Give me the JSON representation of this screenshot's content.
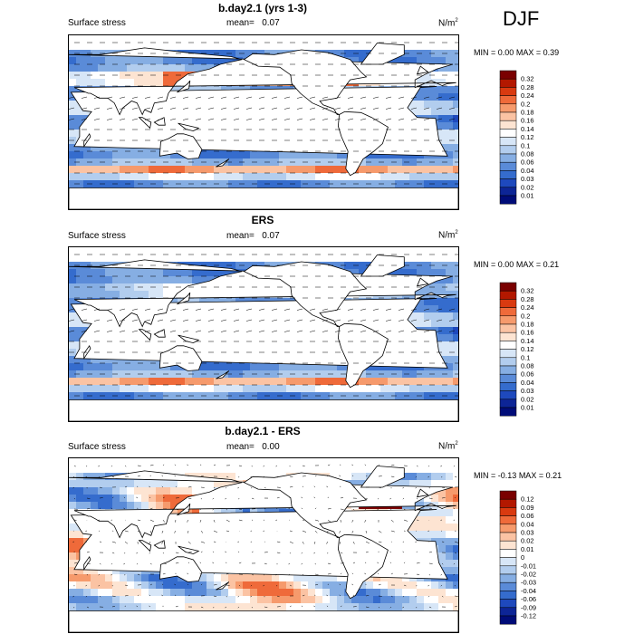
{
  "season": "DJF",
  "panels": [
    {
      "title": "b.day2.1 (yrs 1-3)",
      "left_label": "Surface stress",
      "mean_label": "mean=",
      "mean_value": "0.07",
      "units": "N/m",
      "units_sup": "2",
      "min_label": "MIN =",
      "min_value": "0.00",
      "max_label": "MAX =",
      "max_value": "0.39",
      "colorbar": [
        "0.32",
        "0.28",
        "0.24",
        "0.2",
        "0.18",
        "0.16",
        "0.14",
        "0.12",
        "0.1",
        "0.08",
        "0.06",
        "0.04",
        "0.03",
        "0.02",
        "0.01"
      ],
      "colors": [
        "#7a0000",
        "#b31800",
        "#d93a10",
        "#ef6a3a",
        "#f69a6c",
        "#fbc3a3",
        "#fde4d2",
        "#ffffff",
        "#d7e6f7",
        "#b2cdee",
        "#86aee3",
        "#5a8bd8",
        "#356ccd",
        "#1e49bd",
        "#0d2596",
        "#000c78"
      ]
    },
    {
      "title": "ERS",
      "left_label": "Surface stress",
      "mean_label": "mean=",
      "mean_value": "0.07",
      "units": "N/m",
      "units_sup": "2",
      "min_label": "MIN =",
      "min_value": "0.00",
      "max_label": "MAX =",
      "max_value": "0.21",
      "colorbar": [
        "0.32",
        "0.28",
        "0.24",
        "0.2",
        "0.18",
        "0.16",
        "0.14",
        "0.12",
        "0.1",
        "0.08",
        "0.06",
        "0.04",
        "0.03",
        "0.02",
        "0.01"
      ],
      "colors": [
        "#7a0000",
        "#b31800",
        "#d93a10",
        "#ef6a3a",
        "#f69a6c",
        "#fbc3a3",
        "#fde4d2",
        "#ffffff",
        "#d7e6f7",
        "#b2cdee",
        "#86aee3",
        "#5a8bd8",
        "#356ccd",
        "#1e49bd",
        "#0d2596",
        "#000c78"
      ]
    },
    {
      "title": "b.day2.1 - ERS",
      "left_label": "Surface stress",
      "mean_label": "mean=",
      "mean_value": "0.00",
      "units": "N/m",
      "units_sup": "2",
      "min_label": "MIN =",
      "min_value": "-0.13",
      "max_label": "MAX =",
      "max_value": "0.21",
      "colorbar": [
        "0.12",
        "0.09",
        "0.06",
        "0.04",
        "0.03",
        "0.02",
        "0.01",
        "0",
        "-0.01",
        "-0.02",
        "-0.03",
        "-0.04",
        "-0.06",
        "-0.09",
        "-0.12"
      ],
      "colors": [
        "#7a0000",
        "#b31800",
        "#d93a10",
        "#ef6a3a",
        "#f69a6c",
        "#fbc3a3",
        "#fde4d2",
        "#ffffff",
        "#d7e6f7",
        "#b2cdee",
        "#86aee3",
        "#5a8bd8",
        "#356ccd",
        "#1e49bd",
        "#0d2596",
        "#000c78"
      ]
    }
  ],
  "chart_data": [
    {
      "type": "heatmap",
      "title": "b.day2.1 (yrs 1-3)",
      "variable": "Surface stress",
      "units": "N/m2",
      "mean": 0.07,
      "min": 0.0,
      "max": 0.39,
      "season": "DJF",
      "contour_levels": [
        0.01,
        0.02,
        0.03,
        0.04,
        0.06,
        0.08,
        0.1,
        0.12,
        0.14,
        0.16,
        0.18,
        0.2,
        0.24,
        0.28,
        0.32
      ],
      "overlay": "wind stress vectors"
    },
    {
      "type": "heatmap",
      "title": "ERS",
      "variable": "Surface stress",
      "units": "N/m2",
      "mean": 0.07,
      "min": 0.0,
      "max": 0.21,
      "season": "DJF",
      "contour_levels": [
        0.01,
        0.02,
        0.03,
        0.04,
        0.06,
        0.08,
        0.1,
        0.12,
        0.14,
        0.16,
        0.18,
        0.2,
        0.24,
        0.28,
        0.32
      ],
      "overlay": "wind stress vectors"
    },
    {
      "type": "heatmap",
      "title": "b.day2.1 - ERS",
      "variable": "Surface stress",
      "units": "N/m2",
      "mean": 0.0,
      "min": -0.13,
      "max": 0.21,
      "season": "DJF",
      "contour_levels": [
        -0.12,
        -0.09,
        -0.06,
        -0.04,
        -0.03,
        -0.02,
        -0.01,
        0,
        0.01,
        0.02,
        0.03,
        0.04,
        0.06,
        0.09,
        0.12
      ],
      "overlay": "wind stress vectors"
    }
  ]
}
